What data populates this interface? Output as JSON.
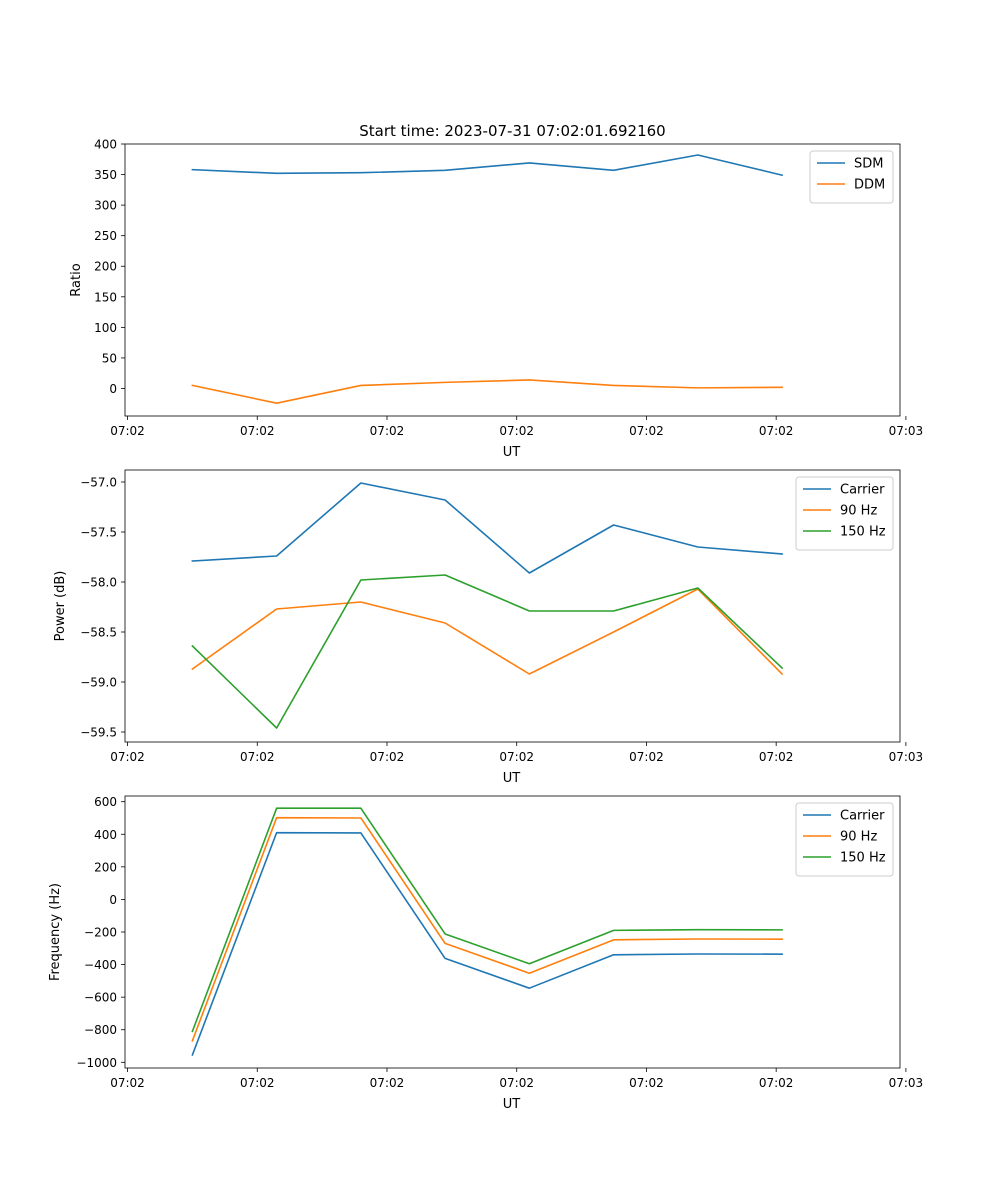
{
  "figure": {
    "title": "Start time: 2023-07-31 07:02:01.692160"
  },
  "chart_data": [
    {
      "type": "line",
      "title": "Start time: 2023-07-31 07:02:01.692160",
      "xlabel": "UT",
      "ylabel": "Ratio",
      "xticks": [
        "07:02",
        "07:02",
        "07:02",
        "07:02",
        "07:02",
        "07:02",
        "07:03"
      ],
      "yticks": [
        "0",
        "50",
        "100",
        "150",
        "200",
        "250",
        "300",
        "350",
        "400"
      ],
      "ylim": [
        -45,
        400
      ],
      "x": [
        1,
        2,
        3,
        4,
        5,
        6,
        7,
        8
      ],
      "legend_position": "top-right",
      "series": [
        {
          "name": "SDM",
          "color": "#1f77b4",
          "values": [
            358,
            352,
            353,
            357,
            369,
            357,
            382,
            349
          ]
        },
        {
          "name": "DDM",
          "color": "#ff7f0e",
          "values": [
            5,
            -24,
            5,
            10,
            14,
            5,
            1,
            2
          ]
        }
      ]
    },
    {
      "type": "line",
      "title": "",
      "xlabel": "UT",
      "ylabel": "Power (dB)",
      "xticks": [
        "07:02",
        "07:02",
        "07:02",
        "07:02",
        "07:02",
        "07:02",
        "07:03"
      ],
      "yticks": [
        "−59.5",
        "−59.0",
        "−58.5",
        "−58.0",
        "−57.5",
        "−57.0"
      ],
      "ylim": [
        -59.6,
        -56.88
      ],
      "x": [
        1,
        2,
        3,
        4,
        5,
        6,
        7,
        8
      ],
      "legend_position": "top-right",
      "series": [
        {
          "name": "Carrier",
          "color": "#1f77b4",
          "values": [
            -57.79,
            -57.74,
            -57.01,
            -57.18,
            -57.91,
            -57.43,
            -57.65,
            -57.72
          ]
        },
        {
          "name": "90 Hz",
          "color": "#ff7f0e",
          "values": [
            -58.87,
            -58.27,
            -58.2,
            -58.41,
            -58.92,
            -58.5,
            -58.07,
            -58.92
          ]
        },
        {
          "name": "150 Hz",
          "color": "#2ca02c",
          "values": [
            -58.64,
            -59.46,
            -57.98,
            -57.93,
            -58.29,
            -58.29,
            -58.06,
            -58.86
          ]
        }
      ]
    },
    {
      "type": "line",
      "title": "",
      "xlabel": "UT",
      "ylabel": "Frequency (Hz)",
      "xticks": [
        "07:02",
        "07:02",
        "07:02",
        "07:02",
        "07:02",
        "07:02",
        "07:03"
      ],
      "yticks": [
        "−1000",
        "−800",
        "−600",
        "−400",
        "−200",
        "0",
        "200",
        "400",
        "600"
      ],
      "ylim": [
        -1035,
        635
      ],
      "x": [
        1,
        2,
        3,
        4,
        5,
        6,
        7,
        8
      ],
      "legend_position": "top-right",
      "series": [
        {
          "name": "Carrier",
          "color": "#1f77b4",
          "values": [
            -955,
            410,
            408,
            -362,
            -545,
            -340,
            -335,
            -336
          ]
        },
        {
          "name": "90 Hz",
          "color": "#ff7f0e",
          "values": [
            -868,
            502,
            500,
            -270,
            -453,
            -248,
            -243,
            -244
          ]
        },
        {
          "name": "150 Hz",
          "color": "#2ca02c",
          "values": [
            -810,
            560,
            560,
            -212,
            -395,
            -190,
            -186,
            -187
          ]
        }
      ]
    }
  ]
}
